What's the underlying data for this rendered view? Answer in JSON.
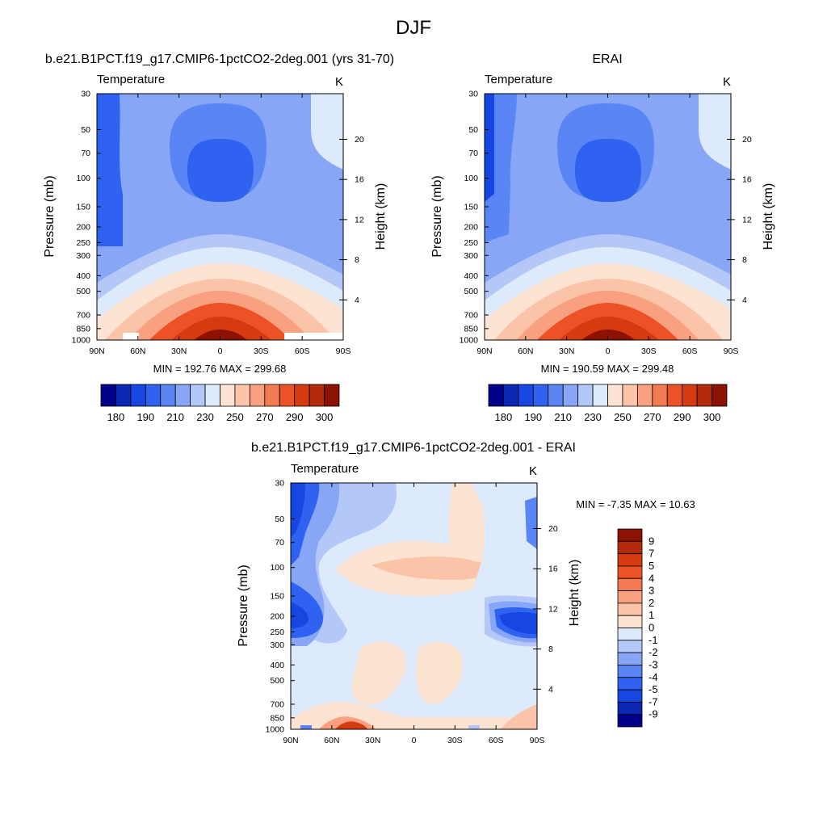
{
  "figure": {
    "title": "DJF",
    "colors": {
      "background": "#ffffff",
      "frame": "#000000"
    }
  },
  "chart_data": [
    {
      "type": "heatmap",
      "panel": "model",
      "title": "b.e21.B1PCT.f19_g17.CMIP6-1pctCO2-2deg.001 (yrs 31-70)",
      "variable": "Temperature",
      "units": "K",
      "xlabel": "",
      "ylabel": "Pressure (mb)",
      "y2label": "Height (km)",
      "x_ticks": [
        "90N",
        "60N",
        "30N",
        "0",
        "30S",
        "60S",
        "90S"
      ],
      "x_range": [
        90,
        -90
      ],
      "y_ticks": [
        "30",
        "50",
        "70",
        "100",
        "150",
        "200",
        "250",
        "300",
        "400",
        "500",
        "700",
        "850",
        "1000"
      ],
      "y_range_mb": [
        30,
        1000
      ],
      "y2_ticks": [
        "20",
        "16",
        "12",
        "8",
        "4"
      ],
      "stats_text": "MIN = 192.76  MAX = 299.68",
      "min": 192.76,
      "max": 299.68,
      "colorbar": {
        "orientation": "horizontal",
        "labels": [
          "180",
          "190",
          "210",
          "230",
          "250",
          "270",
          "290",
          "300"
        ]
      }
    },
    {
      "type": "heatmap",
      "panel": "obs",
      "title": "ERAI",
      "variable": "Temperature",
      "units": "K",
      "xlabel": "",
      "ylabel": "Pressure (mb)",
      "y2label": "Height (km)",
      "x_ticks": [
        "90N",
        "60N",
        "30N",
        "0",
        "30S",
        "60S",
        "90S"
      ],
      "x_range": [
        90,
        -90
      ],
      "y_ticks": [
        "30",
        "50",
        "70",
        "100",
        "150",
        "200",
        "250",
        "300",
        "400",
        "500",
        "700",
        "850",
        "1000"
      ],
      "y_range_mb": [
        30,
        1000
      ],
      "y2_ticks": [
        "20",
        "16",
        "12",
        "8",
        "4"
      ],
      "stats_text": "MIN = 190.59  MAX = 299.48",
      "min": 190.59,
      "max": 299.48,
      "colorbar": {
        "orientation": "horizontal",
        "labels": [
          "180",
          "190",
          "210",
          "230",
          "250",
          "270",
          "290",
          "300"
        ]
      }
    },
    {
      "type": "heatmap",
      "panel": "diff",
      "title": "b.e21.B1PCT.f19_g17.CMIP6-1pctCO2-2deg.001 - ERAI",
      "variable": "Temperature",
      "units": "K",
      "xlabel": "",
      "ylabel": "Pressure (mb)",
      "y2label": "Height (km)",
      "x_ticks": [
        "90N",
        "60N",
        "30N",
        "0",
        "30S",
        "60S",
        "90S"
      ],
      "x_range": [
        90,
        -90
      ],
      "y_ticks": [
        "30",
        "50",
        "70",
        "100",
        "150",
        "200",
        "250",
        "300",
        "400",
        "500",
        "700",
        "850",
        "1000"
      ],
      "y_range_mb": [
        30,
        1000
      ],
      "y2_ticks": [
        "20",
        "16",
        "12",
        "8",
        "4"
      ],
      "stats_text": "MIN =  -7.35  MAX =  10.63",
      "min": -7.35,
      "max": 10.63,
      "colorbar": {
        "orientation": "vertical",
        "labels": [
          "9",
          "7",
          "5",
          "4",
          "3",
          "2",
          "1",
          "0",
          "-1",
          "-2",
          "-3",
          "-4",
          "-5",
          "-7",
          "-9"
        ]
      }
    }
  ],
  "palette": {
    "abs": [
      "#00008c",
      "#0c27b3",
      "#1846e0",
      "#2f62f0",
      "#5a86f5",
      "#88a6f6",
      "#b3c8f8",
      "#ddeafc",
      "#fde3d2",
      "#fbc3a8",
      "#f8a07f",
      "#f47a52",
      "#ec5226",
      "#d63a10",
      "#b52a0b",
      "#8c1204"
    ],
    "diff": [
      "#00008c",
      "#0c27b3",
      "#1846e0",
      "#2f62f0",
      "#5a86f5",
      "#88a6f6",
      "#b3c8f8",
      "#ddeafc",
      "#fde3d2",
      "#fbc3a8",
      "#f8a07f",
      "#f47a52",
      "#ec5226",
      "#d63a10",
      "#b52a0b",
      "#8c1204"
    ]
  }
}
